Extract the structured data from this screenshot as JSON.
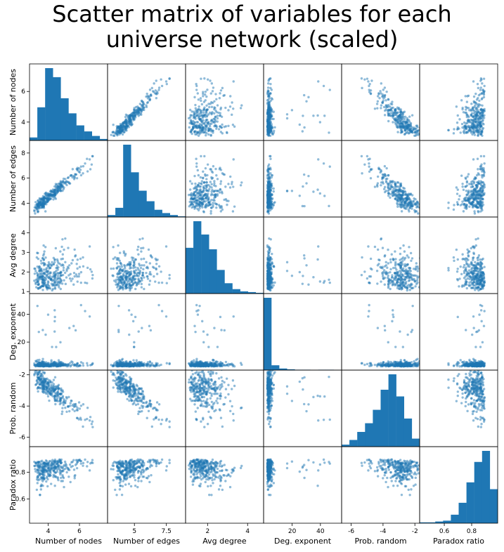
{
  "chart_data": {
    "type": "scatter-matrix",
    "title_lines": [
      "Scatter matrix of variables for each",
      "universe network (scaled)"
    ],
    "variables": [
      {
        "key": "nodes",
        "label": "Number of nodes",
        "range": [
          2.8,
          7.8
        ],
        "ticks": [
          4,
          6
        ],
        "hist": [
          2,
          22,
          48,
          42,
          28,
          18,
          10,
          6,
          3,
          1
        ]
      },
      {
        "key": "edges",
        "label": "Number of edges",
        "range": [
          2.9,
          9.0
        ],
        "ticks": [
          5.0,
          7.5
        ],
        "hist": [
          3,
          14,
          110,
          68,
          40,
          24,
          11,
          6,
          3,
          1
        ]
      },
      {
        "key": "avgdeg",
        "label": "Avg degree",
        "range": [
          0.9,
          4.8
        ],
        "ticks": [
          2,
          4
        ],
        "hist": [
          62,
          98,
          80,
          60,
          32,
          14,
          6,
          3,
          2,
          1
        ]
      },
      {
        "key": "degexp",
        "label": "Deg. exponent",
        "range": [
          -0.2,
          55
        ],
        "ticks": [
          20,
          40
        ],
        "hist": [
          180,
          12,
          4,
          2,
          1,
          1,
          0,
          1,
          1,
          0
        ]
      },
      {
        "key": "prand",
        "label": "Prob. random",
        "range": [
          -6.6,
          -1.7
        ],
        "ticks": [
          -6,
          -4,
          -2
        ],
        "hist": [
          3,
          10,
          22,
          35,
          55,
          85,
          108,
          75,
          42,
          12
        ]
      },
      {
        "key": "paradox",
        "label": "Paradox ratio",
        "range": [
          0.42,
          0.99
        ],
        "ticks": [
          0.6,
          0.8
        ],
        "hist": [
          1,
          1,
          2,
          3,
          10,
          24,
          48,
          72,
          85,
          40
        ]
      }
    ],
    "y_ticks_override": {
      "nodes": [
        4,
        6
      ],
      "edges": [
        4,
        6,
        8
      ],
      "avgdeg": [
        1,
        2,
        3,
        4
      ],
      "degexp": [
        20,
        40
      ],
      "prand": [
        -6,
        -4,
        -2
      ],
      "paradox": [
        0.6,
        0.8
      ]
    },
    "n_points": 300,
    "marker_color": "#1f77b4",
    "marker_alpha": 0.5,
    "bar_color": "#1f77b4",
    "grid": false
  }
}
